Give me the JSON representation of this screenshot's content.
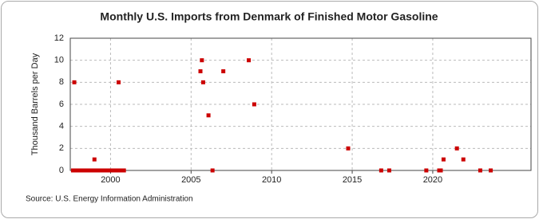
{
  "chart_data": {
    "type": "scatter",
    "title": "Monthly U.S. Imports from Denmark of Finished Motor Gasoline",
    "y_label": "Thousand Barrels per Day",
    "source": "Source: U.S. Energy Information Administration",
    "color": "#cc0000",
    "x": [
      1997.67,
      1997.75,
      1997.83,
      1997.92,
      1998.0,
      1998.08,
      1998.17,
      1998.25,
      1998.33,
      1998.42,
      1998.5,
      1998.58,
      1998.67,
      1998.75,
      1998.83,
      1998.92,
      1999.0,
      1999.08,
      1999.17,
      1999.25,
      1999.33,
      1999.42,
      1999.5,
      1999.58,
      1999.67,
      1999.75,
      1999.83,
      1999.92,
      2000.0,
      2000.08,
      2000.17,
      2000.25,
      2000.33,
      2000.42,
      2000.5,
      2000.58,
      2000.67,
      2000.75,
      2000.83,
      2005.58,
      2005.67,
      2005.75,
      2006.08,
      2006.33,
      2007.0,
      2008.58,
      2008.92,
      2014.75,
      2016.8,
      2017.3,
      2019.6,
      2020.4,
      2020.5,
      2020.67,
      2021.5,
      2021.9,
      2022.95,
      2023.6
    ],
    "values": [
      0,
      8,
      0,
      0,
      0,
      0,
      0,
      0,
      0,
      0,
      0,
      0,
      0,
      0,
      0,
      0,
      1,
      0,
      0,
      0,
      0,
      0,
      0,
      0,
      0,
      0,
      0,
      0,
      0,
      0,
      0,
      0,
      0,
      0,
      8,
      0,
      0,
      0,
      0,
      9,
      10,
      8,
      5,
      0,
      9,
      10,
      6,
      2,
      0,
      0,
      0,
      0,
      0,
      1,
      2,
      1,
      0,
      0
    ],
    "xlim": [
      1997.5,
      2026.1
    ],
    "xticks": [
      2000,
      2005,
      2010,
      2015,
      2020
    ],
    "ylim": [
      0,
      12
    ],
    "yticks": [
      0,
      2,
      4,
      6,
      8,
      10,
      12
    ],
    "grid": true
  }
}
